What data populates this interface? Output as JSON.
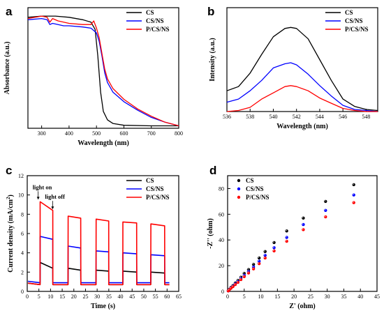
{
  "chart_data": [
    {
      "panel": "a",
      "type": "line",
      "xlabel": "Wavelength (nm)",
      "ylabel": "Absorbance (a.u.)",
      "xlim": [
        250,
        800
      ],
      "ylim": [
        0,
        1
      ],
      "xticks": [
        300,
        400,
        500,
        600,
        700,
        800
      ],
      "legend": "top-right",
      "series": [
        {
          "name": "CS",
          "color": "#000000",
          "points": [
            [
              250,
              0.92
            ],
            [
              300,
              0.93
            ],
            [
              350,
              0.93
            ],
            [
              400,
              0.92
            ],
            [
              450,
              0.9
            ],
            [
              480,
              0.88
            ],
            [
              495,
              0.82
            ],
            [
              505,
              0.6
            ],
            [
              515,
              0.3
            ],
            [
              525,
              0.14
            ],
            [
              540,
              0.07
            ],
            [
              560,
              0.04
            ],
            [
              600,
              0.025
            ],
            [
              700,
              0.02
            ],
            [
              800,
              0.02
            ]
          ]
        },
        {
          "name": "CS/NS",
          "color": "#0000ff",
          "points": [
            [
              250,
              0.9
            ],
            [
              300,
              0.91
            ],
            [
              320,
              0.9
            ],
            [
              330,
              0.86
            ],
            [
              340,
              0.87
            ],
            [
              360,
              0.86
            ],
            [
              380,
              0.85
            ],
            [
              400,
              0.85
            ],
            [
              450,
              0.84
            ],
            [
              480,
              0.83
            ],
            [
              500,
              0.79
            ],
            [
              510,
              0.72
            ],
            [
              520,
              0.6
            ],
            [
              530,
              0.46
            ],
            [
              540,
              0.38
            ],
            [
              560,
              0.3
            ],
            [
              600,
              0.22
            ],
            [
              650,
              0.15
            ],
            [
              700,
              0.09
            ],
            [
              750,
              0.05
            ],
            [
              800,
              0.02
            ]
          ]
        },
        {
          "name": "P/CS/NS",
          "color": "#ff0000",
          "points": [
            [
              250,
              0.91
            ],
            [
              300,
              0.93
            ],
            [
              320,
              0.92
            ],
            [
              330,
              0.88
            ],
            [
              340,
              0.91
            ],
            [
              360,
              0.89
            ],
            [
              400,
              0.87
            ],
            [
              450,
              0.86
            ],
            [
              480,
              0.86
            ],
            [
              490,
              0.89
            ],
            [
              500,
              0.83
            ],
            [
              510,
              0.75
            ],
            [
              520,
              0.62
            ],
            [
              530,
              0.49
            ],
            [
              540,
              0.41
            ],
            [
              560,
              0.33
            ],
            [
              600,
              0.24
            ],
            [
              650,
              0.16
            ],
            [
              700,
              0.1
            ],
            [
              750,
              0.05
            ],
            [
              800,
              0.02
            ]
          ]
        }
      ]
    },
    {
      "panel": "b",
      "type": "line",
      "xlabel": "Wavelength (nm)",
      "ylabel": "Intensity (a.u.)",
      "xlim": [
        536,
        549
      ],
      "ylim": [
        0,
        1
      ],
      "xticks": [
        536,
        538,
        540,
        542,
        544,
        546,
        548
      ],
      "legend": "top-right",
      "series": [
        {
          "name": "CS",
          "color": "#000000",
          "points": [
            [
              536,
              0.2
            ],
            [
              537,
              0.24
            ],
            [
              538,
              0.37
            ],
            [
              539,
              0.55
            ],
            [
              540,
              0.72
            ],
            [
              541,
              0.8
            ],
            [
              541.5,
              0.81
            ],
            [
              542,
              0.8
            ],
            [
              543,
              0.7
            ],
            [
              544,
              0.5
            ],
            [
              545,
              0.3
            ],
            [
              546,
              0.12
            ],
            [
              547,
              0.05
            ],
            [
              548,
              0.02
            ],
            [
              549,
              0.01
            ]
          ]
        },
        {
          "name": "CS/NS",
          "color": "#0000ff",
          "points": [
            [
              536,
              0.09
            ],
            [
              537,
              0.12
            ],
            [
              538,
              0.2
            ],
            [
              539,
              0.3
            ],
            [
              540,
              0.42
            ],
            [
              541,
              0.46
            ],
            [
              541.5,
              0.47
            ],
            [
              542,
              0.45
            ],
            [
              543,
              0.36
            ],
            [
              544,
              0.25
            ],
            [
              545,
              0.15
            ],
            [
              546,
              0.06
            ],
            [
              547,
              0.02
            ],
            [
              548,
              0.01
            ],
            [
              549,
              0.0
            ]
          ]
        },
        {
          "name": "P/CS/NS",
          "color": "#ff0000",
          "points": [
            [
              536,
              0.0
            ],
            [
              537,
              0.01
            ],
            [
              538,
              0.04
            ],
            [
              539,
              0.12
            ],
            [
              540,
              0.18
            ],
            [
              541,
              0.24
            ],
            [
              541.5,
              0.25
            ],
            [
              542,
              0.24
            ],
            [
              543,
              0.2
            ],
            [
              544,
              0.13
            ],
            [
              545,
              0.08
            ],
            [
              546,
              0.03
            ],
            [
              547,
              0.01
            ],
            [
              548,
              0.0
            ],
            [
              549,
              0.0
            ]
          ]
        }
      ]
    },
    {
      "panel": "c",
      "type": "line",
      "xlabel": "Time (s)",
      "ylabel": "Current density (mA/cm²)",
      "ylabel_main": "Current density (mA/cm",
      "ylabel_sup": "2",
      "ylabel_close": ")",
      "xlim": [
        0,
        65
      ],
      "ylim": [
        0,
        12
      ],
      "xticks": [
        0,
        5,
        10,
        15,
        20,
        25,
        30,
        35,
        40,
        45,
        50,
        55,
        60,
        65
      ],
      "yticks": [
        0,
        2,
        4,
        6,
        8,
        10,
        12
      ],
      "legend": "top-right",
      "annotations": [
        {
          "text": "light on",
          "x": 5.3,
          "y": 10.6
        },
        {
          "text": "light off",
          "x": 10.6,
          "y": 9.6
        }
      ],
      "on_periods": [
        [
          5.5,
          11
        ],
        [
          17.5,
          23
        ],
        [
          29.5,
          35
        ],
        [
          41,
          47
        ],
        [
          53,
          59
        ]
      ],
      "series": [
        {
          "name": "CS",
          "color": "#000000",
          "dark": 0.7,
          "on_start": [
            3.0,
            2.4,
            2.2,
            2.1,
            2.0
          ],
          "on_end": [
            2.4,
            2.2,
            2.1,
            2.0,
            1.9
          ]
        },
        {
          "name": "CS/NS",
          "color": "#0000ff",
          "dark": 0.9,
          "on_start": [
            5.7,
            4.7,
            4.2,
            4.0,
            3.8
          ],
          "on_end": [
            5.4,
            4.5,
            4.1,
            3.9,
            3.7
          ]
        },
        {
          "name": "P/CS/NS",
          "color": "#ff0000",
          "dark": 0.7,
          "on_start": [
            9.3,
            7.8,
            7.5,
            7.2,
            7.0
          ],
          "on_end": [
            8.4,
            7.6,
            7.3,
            7.1,
            6.8
          ]
        }
      ]
    },
    {
      "panel": "d",
      "type": "scatter",
      "xlabel": "Z' (ohm)",
      "ylabel": "-Z'' (ohm)",
      "xlim": [
        0,
        45
      ],
      "ylim": [
        0,
        90
      ],
      "xticks": [
        0,
        5,
        10,
        15,
        20,
        25,
        30,
        35,
        40,
        45
      ],
      "yticks": [
        0,
        20,
        40,
        60,
        80
      ],
      "legend": "top-left",
      "series": [
        {
          "name": "CS",
          "color": "#000000",
          "x": [
            0.2,
            0.5,
            1,
            1.6,
            2.3,
            3.1,
            4,
            5,
            6.3,
            7.8,
            9.5,
            11.3,
            14,
            17.8,
            22.8,
            29.5,
            38
          ],
          "y": [
            0.5,
            1.5,
            3,
            4.5,
            6.5,
            8.5,
            11,
            14,
            17,
            21,
            26,
            31,
            38,
            47,
            57,
            70,
            83
          ]
        },
        {
          "name": "CS/NS",
          "color": "#0000ff",
          "x": [
            0.2,
            0.5,
            1,
            1.6,
            2.3,
            3.1,
            4,
            5,
            6.3,
            7.8,
            9.5,
            11.3,
            14,
            17.8,
            22.8,
            29.5,
            38
          ],
          "y": [
            0.4,
            1.3,
            2.6,
            4,
            5.8,
            7.6,
            10,
            12.5,
            15.5,
            19,
            23.5,
            28,
            34,
            42,
            52,
            63,
            75
          ]
        },
        {
          "name": "P/CS/NS",
          "color": "#ff0000",
          "x": [
            0.2,
            0.5,
            1,
            1.6,
            2.3,
            3.1,
            4,
            5,
            6.3,
            7.8,
            9.5,
            11.3,
            14,
            17.8,
            22.8,
            29.5,
            38
          ],
          "y": [
            0.4,
            1.2,
            2.4,
            3.7,
            5.3,
            7,
            9.2,
            11.5,
            14.3,
            17.5,
            21.6,
            26,
            31.5,
            39,
            48,
            58,
            69
          ]
        }
      ]
    }
  ]
}
